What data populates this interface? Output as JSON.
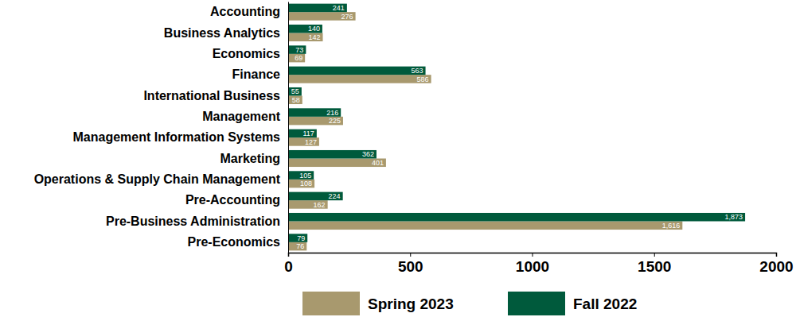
{
  "chart_data": {
    "type": "bar",
    "orientation": "horizontal",
    "data_labels": true,
    "grid": false,
    "legend": "bottom",
    "categories": [
      "Accounting",
      "Business Analytics",
      "Economics",
      "Finance",
      "International Business",
      "Management",
      "Management Information Systems",
      "Marketing",
      "Operations & Supply Chain Management",
      "Pre-Accounting",
      "Pre-Business Administration",
      "Pre-Economics"
    ],
    "series": [
      {
        "name": "Spring 2023",
        "color": "#a8996e",
        "values": [
          276,
          142,
          69,
          586,
          58,
          225,
          127,
          401,
          108,
          162,
          1616,
          76
        ],
        "value_labels": [
          "276",
          "142",
          "69",
          "586",
          "58",
          "225",
          "127",
          "401",
          "108",
          "162",
          "1,616",
          "76"
        ]
      },
      {
        "name": "Fall 2022",
        "color": "#005a3c",
        "values": [
          241,
          140,
          73,
          563,
          55,
          216,
          117,
          362,
          105,
          224,
          1873,
          79
        ],
        "value_labels": [
          "241",
          "140",
          "73",
          "563",
          "55",
          "216",
          "117",
          "362",
          "105",
          "224",
          "1,873",
          "79"
        ]
      }
    ],
    "xlim": [
      0,
      2000
    ],
    "xticks": [
      0,
      500,
      1000,
      1500,
      2000
    ]
  }
}
